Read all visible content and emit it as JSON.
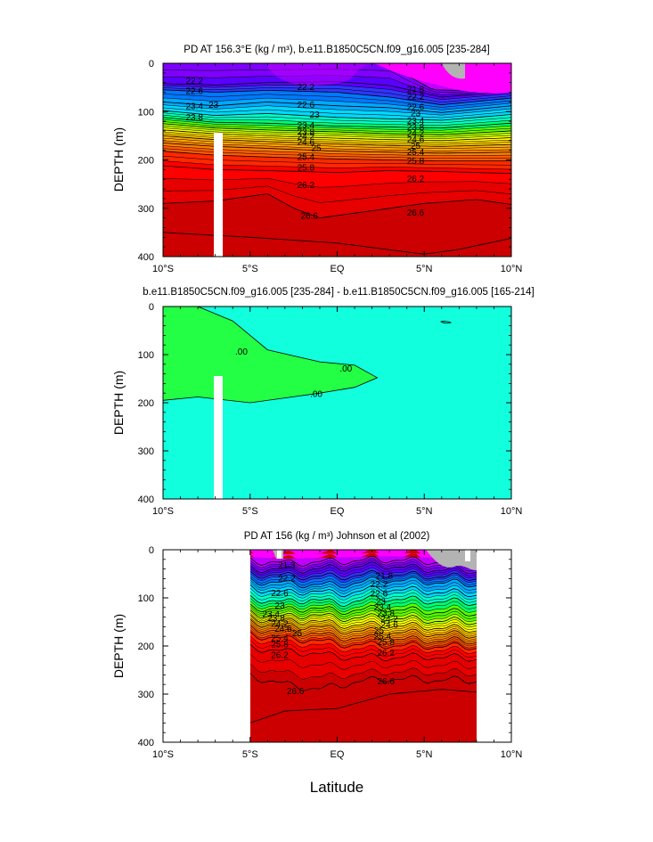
{
  "figure": {
    "xlabel": "Latitude",
    "x_ticks": [
      "10°S",
      "5°S",
      "EQ",
      "5°N",
      "10°N"
    ],
    "y_ticks": [
      "0",
      "100",
      "200",
      "300",
      "400"
    ]
  },
  "chart_data": [
    {
      "type": "heatmap",
      "title": "PD AT 156.3°E (kg / m³), b.e11.B1850C5CN.f09_g16.005 [235-284]",
      "xlabel": "",
      "ylabel": "DEPTH (m)",
      "xlim": [
        -10,
        10
      ],
      "ylim": [
        400,
        0
      ],
      "x_ticks": [
        "10°S",
        "5°S",
        "EQ",
        "5°N",
        "10°N"
      ],
      "y_ticks": [
        0,
        100,
        200,
        300,
        400
      ],
      "contour_levels": [
        21.8,
        22.2,
        22.6,
        23,
        23.4,
        23.8,
        24.2,
        24.6,
        25,
        25.4,
        25.8,
        26.2,
        26.6
      ],
      "contour_labels": [
        "22.2",
        "22.6",
        "23",
        "23.4",
        "23.8",
        "22.2",
        "22.6",
        "23",
        "23.4",
        "23.8",
        "24.2",
        "24.6",
        "25",
        "25.4",
        "25.8",
        "26.2",
        "26.6",
        "21.8",
        "22.2",
        "22.6",
        "23",
        "23.4",
        "23.8",
        "24.2",
        "24.6",
        "25",
        "25.4",
        "25.8",
        "26.2",
        "26.6"
      ],
      "isopycnals": [
        {
          "level": 21.8,
          "points": [
            [
              -10,
              0
            ],
            [
              3,
              0
            ],
            [
              4,
              25
            ],
            [
              5.5,
              55
            ],
            [
              7,
              56
            ],
            [
              8.5,
              50
            ],
            [
              10,
              30
            ]
          ]
        },
        {
          "level": 22.2,
          "points": [
            [
              -10,
              42
            ],
            [
              -7,
              45
            ],
            [
              -4,
              40
            ],
            [
              0,
              38
            ],
            [
              3,
              46
            ],
            [
              6,
              70
            ],
            [
              10,
              58
            ]
          ]
        },
        {
          "level": 22.6,
          "points": [
            [
              -10,
              55
            ],
            [
              -7,
              60
            ],
            [
              -4,
              56
            ],
            [
              0,
              60
            ],
            [
              3,
              70
            ],
            [
              6,
              86
            ],
            [
              10,
              72
            ]
          ]
        },
        {
          "level": 23.0,
          "points": [
            [
              -10,
              80
            ],
            [
              -7,
              88
            ],
            [
              -4,
              80
            ],
            [
              0,
              88
            ],
            [
              3,
              92
            ],
            [
              6,
              102
            ],
            [
              10,
              88
            ]
          ]
        },
        {
          "level": 23.4,
          "points": [
            [
              -10,
              98
            ],
            [
              -7,
              108
            ],
            [
              -4,
              104
            ],
            [
              0,
              112
            ],
            [
              3,
              115
            ],
            [
              6,
              118
            ],
            [
              10,
              106
            ]
          ]
        },
        {
          "level": 23.8,
          "points": [
            [
              -10,
              112
            ],
            [
              -7,
              122
            ],
            [
              -4,
              124
            ],
            [
              0,
              130
            ],
            [
              3,
              132
            ],
            [
              6,
              134
            ],
            [
              10,
              124
            ]
          ]
        },
        {
          "level": 24.2,
          "points": [
            [
              -10,
              125
            ],
            [
              -7,
              134
            ],
            [
              -4,
              138
            ],
            [
              0,
              142
            ],
            [
              3,
              146
            ],
            [
              6,
              148
            ],
            [
              10,
              140
            ]
          ]
        },
        {
          "level": 24.6,
          "points": [
            [
              -10,
              138
            ],
            [
              -7,
              146
            ],
            [
              -4,
              150
            ],
            [
              0,
              155
            ],
            [
              3,
              158
            ],
            [
              6,
              160
            ],
            [
              10,
              154
            ]
          ]
        },
        {
          "level": 25.0,
          "points": [
            [
              -10,
              150
            ],
            [
              -7,
              158
            ],
            [
              -4,
              162
            ],
            [
              0,
              167
            ],
            [
              3,
              170
            ],
            [
              6,
              172
            ],
            [
              10,
              168
            ]
          ]
        },
        {
          "level": 25.4,
          "points": [
            [
              -10,
              165
            ],
            [
              -7,
              172
            ],
            [
              -4,
              176
            ],
            [
              0,
              182
            ],
            [
              3,
              184
            ],
            [
              6,
              186
            ],
            [
              10,
              184
            ]
          ]
        },
        {
          "level": 25.8,
          "points": [
            [
              -10,
              182
            ],
            [
              -7,
              190
            ],
            [
              -4,
              194
            ],
            [
              0,
              198
            ],
            [
              3,
              200
            ],
            [
              6,
              202
            ],
            [
              10,
              202
            ]
          ]
        },
        {
          "level": 26.2,
          "points": [
            [
              -10,
              212
            ],
            [
              -7,
              220
            ],
            [
              -4,
              222
            ],
            [
              0,
              226
            ],
            [
              3,
              222
            ],
            [
              6,
              224
            ],
            [
              10,
              228
            ]
          ]
        },
        {
          "level": 26.6,
          "points": [
            [
              -10,
              290
            ],
            [
              -7,
              285
            ],
            [
              -4,
              270
            ],
            [
              -2.5,
              300
            ],
            [
              -1,
              320
            ],
            [
              2,
              305
            ],
            [
              5,
              290
            ],
            [
              8,
              282
            ],
            [
              10,
              292
            ]
          ]
        }
      ]
    },
    {
      "type": "heatmap",
      "title": "b.e11.B1850C5CN.f09_g16.005 [235-284] - b.e11.B1850C5CN.f09_g16.005 [165-214]",
      "xlabel": "",
      "ylabel": "DEPTH (m)",
      "xlim": [
        -10,
        10
      ],
      "ylim": [
        400,
        0
      ],
      "x_ticks": [
        "10°S",
        "5°S",
        "EQ",
        "5°N",
        "10°N"
      ],
      "y_ticks": [
        0,
        100,
        200,
        300,
        400
      ],
      "contour_levels": [
        0
      ],
      "contour_labels": [
        ".00",
        ".00",
        ".00"
      ],
      "region_boundary": [
        [
          -8,
          0
        ],
        [
          -6,
          30
        ],
        [
          -4,
          90
        ],
        [
          -1,
          115
        ],
        [
          1,
          122
        ],
        [
          2.3,
          148
        ],
        [
          1,
          168
        ],
        [
          -1,
          180
        ],
        [
          -3,
          190
        ],
        [
          -5,
          200
        ],
        [
          -8,
          188
        ],
        [
          -10,
          195
        ]
      ]
    },
    {
      "type": "heatmap",
      "title": "PD AT 156 (kg / m³) Johnson et al (2002)",
      "xlabel": "Latitude",
      "ylabel": "DEPTH (m)",
      "xlim": [
        -10,
        10
      ],
      "ylim": [
        400,
        0
      ],
      "x_range": [
        -5,
        8
      ],
      "x_ticks": [
        "10°S",
        "5°S",
        "EQ",
        "5°N",
        "10°N"
      ],
      "y_ticks": [
        0,
        100,
        200,
        300,
        400
      ],
      "contour_levels": [
        21.3,
        21.8,
        22.2,
        22.6,
        23,
        23.4,
        23.8,
        24.2,
        24.6,
        25,
        25.4,
        25.8,
        26.2,
        26.6
      ],
      "contour_labels": [
        "21.3",
        "22.2",
        "22.6",
        "23",
        "23.4",
        "23.8",
        "24.2",
        "24.6",
        "25",
        "25.4",
        "25.8",
        "26.2",
        "26.6",
        "21.8",
        "22.2",
        "22.6",
        "23",
        "23.4",
        "23.8",
        "24.2",
        "24.6",
        "25",
        "25.4",
        "25.8",
        "26.2",
        "26.6"
      ],
      "isopycnals": [
        {
          "level": 21.3,
          "points": [
            [
              -5,
              22
            ],
            [
              -3,
              28
            ],
            [
              0,
              24
            ],
            [
              3,
              20
            ],
            [
              5,
              24
            ],
            [
              8,
              28
            ]
          ]
        },
        {
          "level": 21.8,
          "points": [
            [
              -5,
              38
            ],
            [
              -3,
              42
            ],
            [
              0,
              38
            ],
            [
              2.5,
              32
            ],
            [
              5,
              40
            ],
            [
              8,
              44
            ]
          ]
        },
        {
          "level": 22.2,
          "points": [
            [
              -5,
              50
            ],
            [
              -3,
              54
            ],
            [
              0,
              56
            ],
            [
              2.5,
              50
            ],
            [
              5,
              54
            ],
            [
              8,
              58
            ]
          ]
        },
        {
          "level": 22.6,
          "points": [
            [
              -5,
              64
            ],
            [
              -3,
              70
            ],
            [
              0,
              74
            ],
            [
              2.5,
              62
            ],
            [
              5,
              66
            ],
            [
              8,
              72
            ]
          ]
        },
        {
          "level": 23.0,
          "points": [
            [
              -5,
              78
            ],
            [
              -3,
              90
            ],
            [
              -1.5,
              85
            ],
            [
              0,
              92
            ],
            [
              2.5,
              80
            ],
            [
              5,
              86
            ],
            [
              8,
              92
            ]
          ]
        },
        {
          "level": 23.4,
          "points": [
            [
              -5,
              100
            ],
            [
              -3,
              110
            ],
            [
              -1.5,
              102
            ],
            [
              0,
              112
            ],
            [
              2.5,
              100
            ],
            [
              5,
              106
            ],
            [
              8,
              110
            ]
          ]
        },
        {
          "level": 23.8,
          "points": [
            [
              -5,
              118
            ],
            [
              -3,
              126
            ],
            [
              -1.5,
              120
            ],
            [
              0,
              128
            ],
            [
              2.5,
              122
            ],
            [
              5,
              128
            ],
            [
              8,
              132
            ]
          ]
        },
        {
          "level": 24.2,
          "points": [
            [
              -5,
              130
            ],
            [
              -3,
              140
            ],
            [
              -1.5,
              134
            ],
            [
              0,
              142
            ],
            [
              2.5,
              140
            ],
            [
              5,
              146
            ],
            [
              8,
              150
            ]
          ]
        },
        {
          "level": 24.6,
          "points": [
            [
              -5,
              140
            ],
            [
              -3,
              150
            ],
            [
              -1.5,
              146
            ],
            [
              0,
              156
            ],
            [
              2.5,
              156
            ],
            [
              5,
              160
            ],
            [
              8,
              166
            ]
          ]
        },
        {
          "level": 25.0,
          "points": [
            [
              -5,
              150
            ],
            [
              -3,
              160
            ],
            [
              -1.5,
              158
            ],
            [
              0,
              168
            ],
            [
              2.5,
              170
            ],
            [
              5,
              174
            ],
            [
              8,
              178
            ]
          ]
        },
        {
          "level": 25.4,
          "points": [
            [
              -5,
              162
            ],
            [
              -3,
              172
            ],
            [
              -1.5,
              172
            ],
            [
              0,
              182
            ],
            [
              2.5,
              184
            ],
            [
              5,
              188
            ],
            [
              8,
              190
            ]
          ]
        },
        {
          "level": 25.8,
          "points": [
            [
              -5,
              176
            ],
            [
              -3,
              186
            ],
            [
              -1.5,
              186
            ],
            [
              0,
              196
            ],
            [
              2.5,
              198
            ],
            [
              5,
              200
            ],
            [
              8,
              202
            ]
          ]
        },
        {
          "level": 26.2,
          "points": [
            [
              -5,
              202
            ],
            [
              -3,
              212
            ],
            [
              -1.5,
              214
            ],
            [
              0,
              222
            ],
            [
              2.5,
              224
            ],
            [
              5,
              222
            ],
            [
              8,
              226
            ]
          ]
        },
        {
          "level": 26.6,
          "points": [
            [
              -5,
              262
            ],
            [
              -3,
              280
            ],
            [
              -1,
              290
            ],
            [
              1,
              275
            ],
            [
              3,
              268
            ],
            [
              5,
              270
            ],
            [
              8,
              272
            ]
          ]
        }
      ]
    }
  ],
  "colors": {
    "scale": [
      "#ff00ff",
      "#bf00ff",
      "#7f00ff",
      "#5a00ff",
      "#2f36ff",
      "#0078ff",
      "#00a9ff",
      "#00d8ff",
      "#00ffc8",
      "#00ff6e",
      "#58ff00",
      "#b8ff00",
      "#ffff00",
      "#ffd200",
      "#ffa800",
      "#ff8000",
      "#ff5a00",
      "#ff2800",
      "#ff0000",
      "#e60000",
      "#cc0000"
    ],
    "land_gray": "#b3b3b3",
    "diff_positive": "#22ff44",
    "diff_background": "#11ffdd"
  }
}
